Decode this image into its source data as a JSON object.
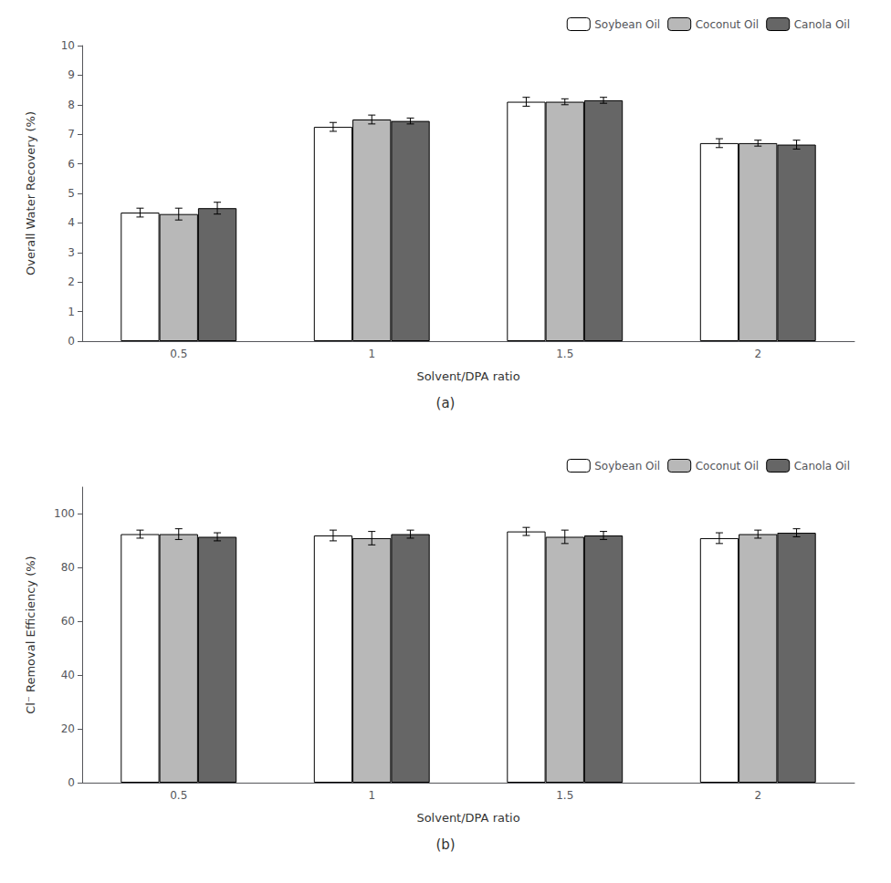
{
  "chart_data": [
    {
      "type": "bar",
      "title": "(a)",
      "xlabel": "Solvent/DPA ratio",
      "ylabel": "Overall Water Recovery (%)",
      "categories": [
        "0.5",
        "1",
        "1.5",
        "2"
      ],
      "series": [
        {
          "name": "Soybean Oil",
          "color": "#ffffff",
          "values": [
            4.35,
            7.25,
            8.1,
            6.7
          ],
          "errors": [
            0.15,
            0.15,
            0.15,
            0.15
          ]
        },
        {
          "name": "Coconut Oil",
          "color": "#b8b8b8",
          "values": [
            4.3,
            7.5,
            8.1,
            6.7
          ],
          "errors": [
            0.2,
            0.15,
            0.1,
            0.1
          ]
        },
        {
          "name": "Canola Oil",
          "color": "#666666",
          "values": [
            4.5,
            7.45,
            8.15,
            6.65
          ],
          "errors": [
            0.2,
            0.1,
            0.1,
            0.15
          ]
        }
      ],
      "ylim": [
        0,
        10
      ],
      "yticks": [
        0,
        1,
        2,
        3,
        4,
        5,
        6,
        7,
        8,
        9,
        10
      ],
      "grid": false,
      "legend": "upper right"
    },
    {
      "type": "bar",
      "title": "(b)",
      "xlabel": "Solvent/DPA ratio",
      "ylabel": "Cl⁻ Removal Efficiency (%)",
      "categories": [
        "0.5",
        "1",
        "1.5",
        "2"
      ],
      "series": [
        {
          "name": "Soybean Oil",
          "color": "#ffffff",
          "values": [
            92.5,
            92.0,
            93.5,
            91.0
          ],
          "errors": [
            1.5,
            2.0,
            1.5,
            2.0
          ]
        },
        {
          "name": "Coconut Oil",
          "color": "#b8b8b8",
          "values": [
            92.5,
            91.0,
            91.5,
            92.5
          ],
          "errors": [
            2.0,
            2.5,
            2.5,
            1.5
          ]
        },
        {
          "name": "Canola Oil",
          "color": "#666666",
          "values": [
            91.5,
            92.5,
            92.0,
            93.0
          ],
          "errors": [
            1.5,
            1.5,
            1.5,
            1.5
          ]
        }
      ],
      "ylim": [
        0,
        110
      ],
      "yticks": [
        0,
        20,
        40,
        60,
        80,
        100
      ],
      "grid": false,
      "legend": "upper right"
    }
  ]
}
